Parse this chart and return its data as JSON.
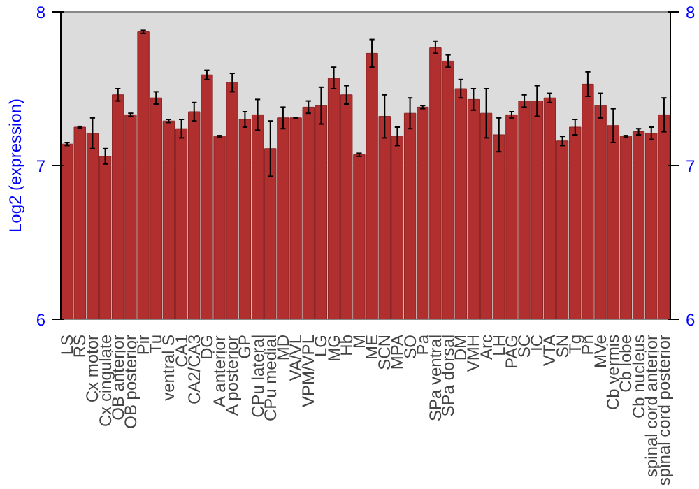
{
  "chart_data": {
    "type": "bar",
    "ylabel": "Log2 (expression)",
    "categories": [
      "LS",
      "RS",
      "Cx motor",
      "Cx cingulate",
      "OB anterior",
      "OB posterior",
      "Pir",
      "Tu",
      "ventral S",
      "CA1",
      "CA2/CA3",
      "DG",
      "A anterior",
      "A posterior",
      "GP",
      "CPu lateral",
      "CPu medial",
      "MD",
      "VA/VL",
      "VPM/VPL",
      "LG",
      "MG",
      "Hb",
      "M",
      "ME",
      "SCN",
      "MPA",
      "SO",
      "Pa",
      "SPa ventral",
      "SPa dorsal",
      "DM",
      "VMH",
      "Arc",
      "LH",
      "PAG",
      "SC",
      "IC",
      "VTA",
      "SN",
      "Tg",
      "Pn",
      "MVe",
      "Cb vermis",
      "Cb lobe",
      "Cb nucleus",
      "spinal cord anterior",
      "spinal cord posterior"
    ],
    "values": [
      7.14,
      7.25,
      7.21,
      7.06,
      7.46,
      7.33,
      7.87,
      7.44,
      7.29,
      7.24,
      7.35,
      7.59,
      7.19,
      7.54,
      7.3,
      7.33,
      7.11,
      7.31,
      7.31,
      7.38,
      7.39,
      7.57,
      7.46,
      7.07,
      7.73,
      7.32,
      7.19,
      7.34,
      7.38,
      7.77,
      7.68,
      7.5,
      7.43,
      7.34,
      7.2,
      7.33,
      7.42,
      7.42,
      7.44,
      7.16,
      7.25,
      7.53,
      7.39,
      7.26,
      7.19,
      7.22,
      7.21,
      7.33
    ],
    "errors": [
      0.01,
      0.005,
      0.1,
      0.05,
      0.04,
      0.01,
      0.01,
      0.04,
      0.01,
      0.06,
      0.06,
      0.03,
      0.005,
      0.06,
      0.05,
      0.1,
      0.18,
      0.07,
      0.003,
      0.04,
      0.12,
      0.07,
      0.06,
      0.01,
      0.09,
      0.14,
      0.06,
      0.1,
      0.01,
      0.04,
      0.04,
      0.06,
      0.07,
      0.16,
      0.11,
      0.02,
      0.04,
      0.1,
      0.03,
      0.03,
      0.05,
      0.08,
      0.08,
      0.11,
      0.005,
      0.02,
      0.04,
      0.11
    ],
    "color": "#b22f2f",
    "ylim": [
      6,
      8
    ],
    "yticks": [
      6,
      7,
      8
    ],
    "y2lim": [
      6,
      8
    ],
    "y2ticks": [
      6,
      7,
      8
    ],
    "grid": "y"
  }
}
